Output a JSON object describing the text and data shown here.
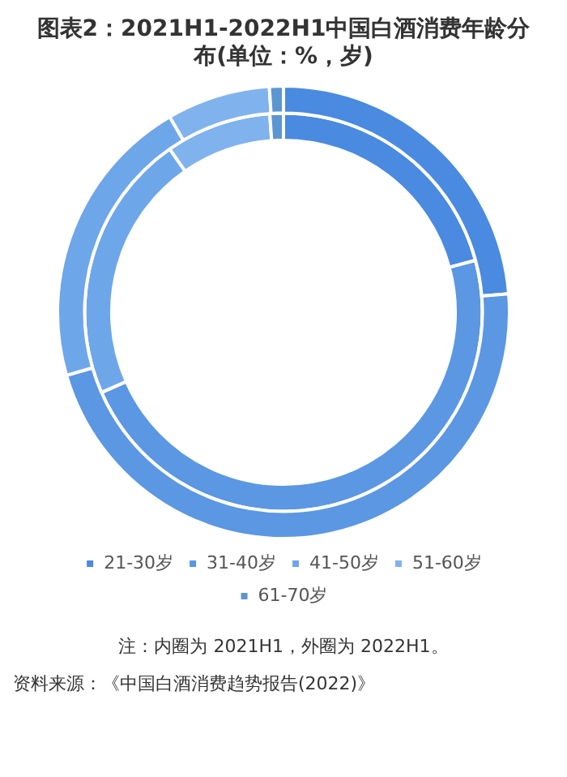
{
  "chart_data": {
    "type": "donut",
    "title": "图表2：2021H1-2022H1中国白酒消费年龄分布(单位：%，岁)",
    "categories": [
      "21-30岁",
      "31-40岁",
      "41-50岁",
      "51-60岁",
      "61-70岁"
    ],
    "colors": [
      "#4a8ae0",
      "#5b97e3",
      "#6ea6ea",
      "#80b2ee",
      "#5b96d2"
    ],
    "series": [
      {
        "values": [
          23.7,
          46.8,
          21.1,
          7.4,
          1.0
        ]
      },
      {
        "values": [
          20.8,
          47.6,
          21.9,
          8.6,
          1.1
        ]
      }
    ],
    "legend": "bottom",
    "annotations": [
      "注：内圈为 2021H1，外圈为 2022H1。",
      "资料来源：《中国白酒消费趋势报告(2022)》"
    ]
  }
}
